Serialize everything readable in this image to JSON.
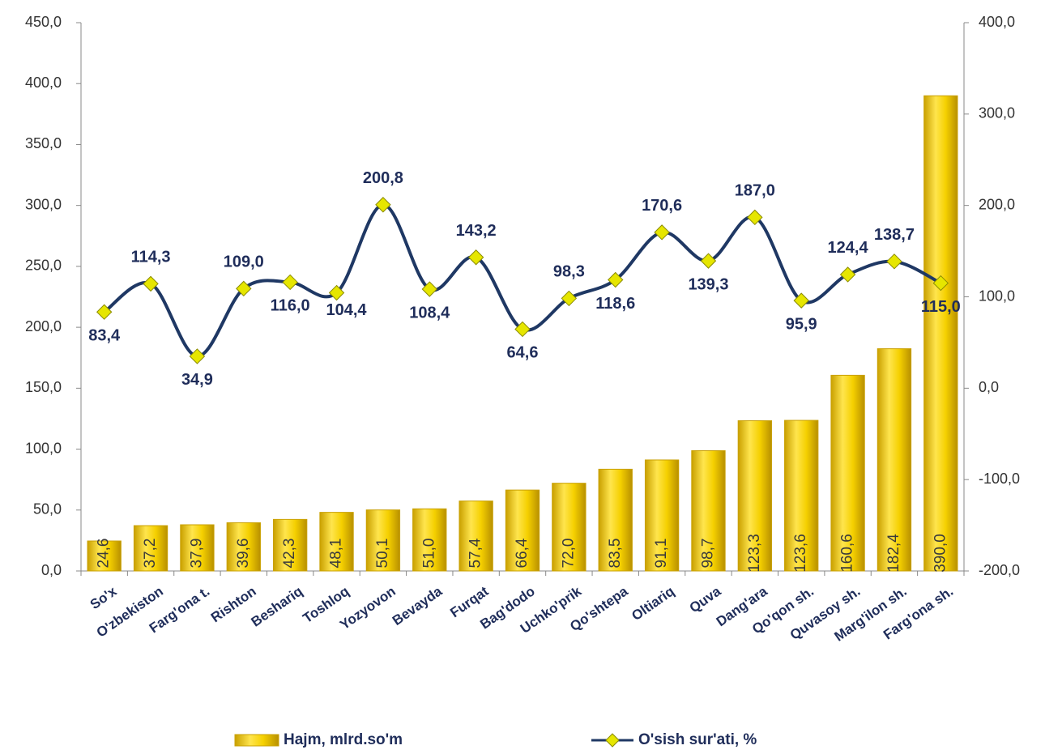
{
  "chart_data": {
    "type": "bar-line",
    "categories": [
      "So'x",
      "O'zbekiston",
      "Farg'ona t.",
      "Rishton",
      "Beshariq",
      "Toshloq",
      "Yozyovon",
      "Bevayda",
      "Furqat",
      "Bag'dodo",
      "Uchko'prik",
      "Qo'shtepa",
      "Oltiariq",
      "Quva",
      "Dang'ara",
      "Qo'qon sh.",
      "Quvasoy sh.",
      "Marg'ilon sh.",
      "Farg'ona sh."
    ],
    "series": [
      {
        "name": "Hajm, mlrd.so'm",
        "type": "bar",
        "color": "#f2c500",
        "values": [
          24.6,
          37.2,
          37.9,
          39.6,
          42.3,
          48.1,
          50.1,
          51.0,
          57.4,
          66.4,
          72.0,
          83.5,
          91.1,
          98.7,
          123.3,
          123.6,
          160.6,
          182.4,
          390.0
        ],
        "value_labels": [
          "24,6",
          "37,2",
          "37,9",
          "39,6",
          "42,3",
          "48,1",
          "50,1",
          "51,0",
          "57,4",
          "66,4",
          "72,0",
          "83,5",
          "91,1",
          "98,7",
          "123,3",
          "123,6",
          "160,6",
          "182,4",
          "390,0"
        ]
      },
      {
        "name": "O'sish sur'ati, %",
        "type": "line",
        "axis": "y2",
        "color": "#1f3864",
        "marker_color": "#e6e600",
        "values": [
          83.4,
          114.3,
          34.9,
          109.0,
          116.0,
          104.4,
          200.8,
          108.4,
          143.2,
          64.6,
          98.3,
          118.6,
          170.6,
          139.3,
          187.0,
          95.9,
          124.4,
          138.7,
          115.0
        ],
        "value_labels": [
          "83,4",
          "114,3",
          "34,9",
          "109,0",
          "116,0",
          "104,4",
          "200,8",
          "108,4",
          "143,2",
          "64,6",
          "98,3",
          "118,6",
          "170,6",
          "139,3",
          "187,0",
          "95,9",
          "124,4",
          "138,7",
          "115,0"
        ]
      }
    ],
    "ylim": [
      0,
      450
    ],
    "yticks": [
      {
        "value": 0,
        "label": "0,0"
      },
      {
        "value": 50,
        "label": "50,0"
      },
      {
        "value": 100,
        "label": "100,0"
      },
      {
        "value": 150,
        "label": "150,0"
      },
      {
        "value": 200,
        "label": "200,0"
      },
      {
        "value": 250,
        "label": "250,0"
      },
      {
        "value": 300,
        "label": "300,0"
      },
      {
        "value": 350,
        "label": "350,0"
      },
      {
        "value": 400,
        "label": "400,0"
      },
      {
        "value": 450,
        "label": "450,0"
      }
    ],
    "y2lim": [
      -200,
      400
    ],
    "y2ticks": [
      {
        "value": -200,
        "label": "-200,0"
      },
      {
        "value": -100,
        "label": "-100,0"
      },
      {
        "value": 0,
        "label": "0,0"
      },
      {
        "value": 100,
        "label": "100,0"
      },
      {
        "value": 200,
        "label": "200,0"
      },
      {
        "value": 300,
        "label": "300,0"
      },
      {
        "value": 400,
        "label": "400,0"
      }
    ],
    "legend": "bottom",
    "grid": false
  }
}
